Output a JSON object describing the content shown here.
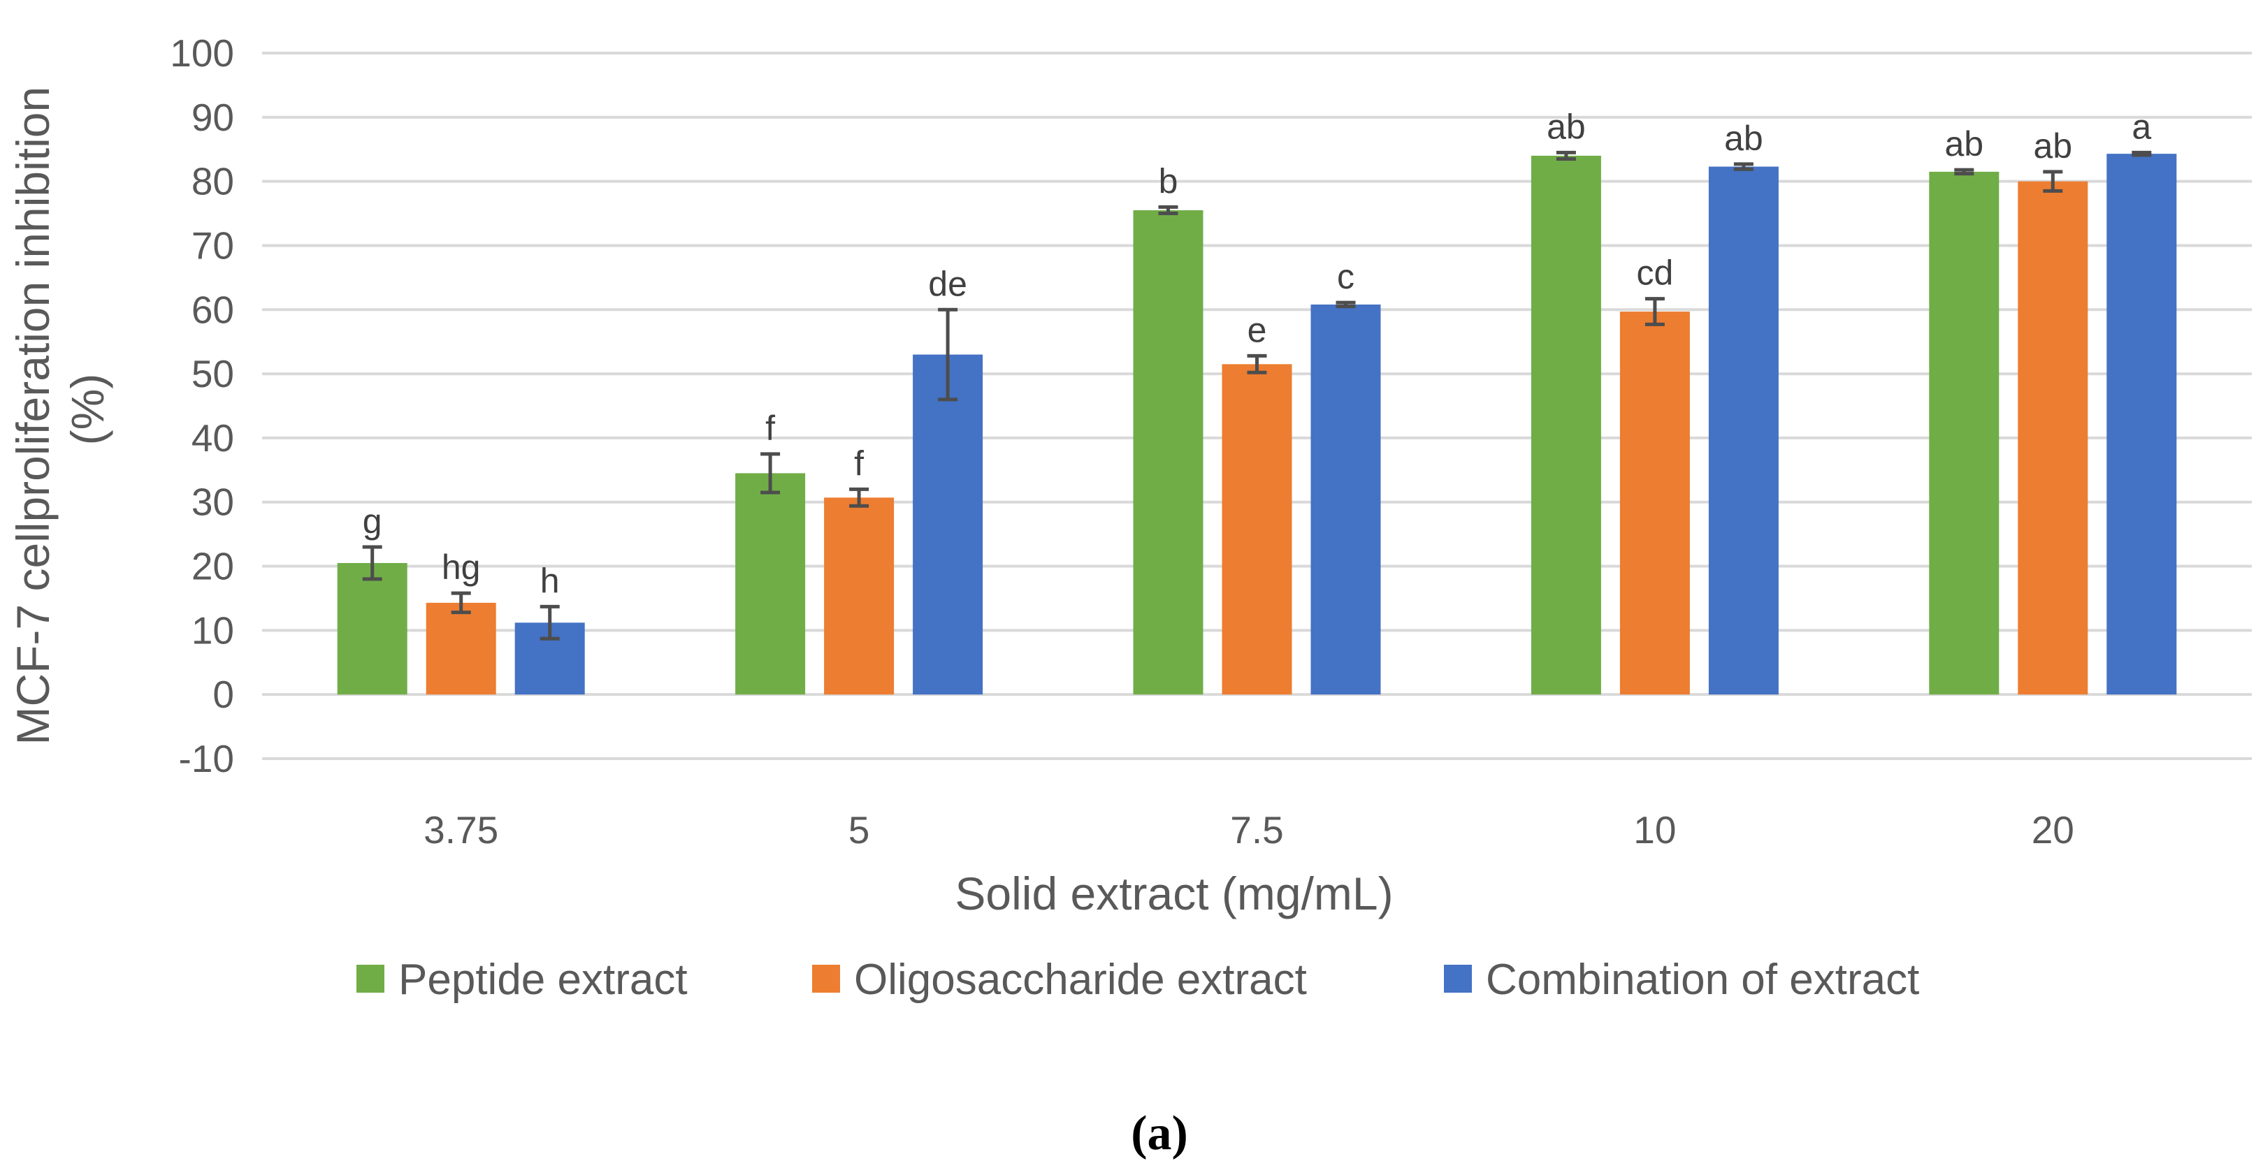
{
  "chart_data": {
    "type": "bar",
    "xlabel": "Solid extract (mg/mL)",
    "ylabel": "MCF-7 cellproliferation inhibition (%)",
    "ylabel_lines": [
      "MCF-7 cellproliferation inhibition",
      "(%)"
    ],
    "ylim": [
      -10,
      100
    ],
    "yticks": [
      -10,
      0,
      10,
      20,
      30,
      40,
      50,
      60,
      70,
      80,
      90,
      100
    ],
    "categories": [
      "3.75",
      "5",
      "7.5",
      "10",
      "20"
    ],
    "grid": true,
    "legend_position": "bottom",
    "series": [
      {
        "name": "Peptide extract",
        "color": "#70ad47",
        "values": [
          20.5,
          34.5,
          75.5,
          84.0,
          81.5
        ],
        "errors": [
          2.5,
          3.0,
          0.5,
          0.5,
          0.3
        ],
        "labels": [
          "g",
          "f",
          "b",
          "ab",
          "ab"
        ]
      },
      {
        "name": "Oligosaccharide extract",
        "color": "#ed7d31",
        "values": [
          14.3,
          30.7,
          51.5,
          59.7,
          80.0
        ],
        "errors": [
          1.5,
          1.3,
          1.3,
          2.0,
          1.5
        ],
        "labels": [
          "hg",
          "f",
          "e",
          "cd",
          "ab"
        ]
      },
      {
        "name": "Combination of extract",
        "color": "#4472c4",
        "values": [
          11.2,
          53.0,
          60.8,
          82.3,
          84.3
        ],
        "errors": [
          2.5,
          7.0,
          0.3,
          0.4,
          0.2
        ],
        "labels": [
          "h",
          "de",
          "c",
          "ab",
          "a"
        ]
      }
    ]
  },
  "panel_label": "(a)"
}
